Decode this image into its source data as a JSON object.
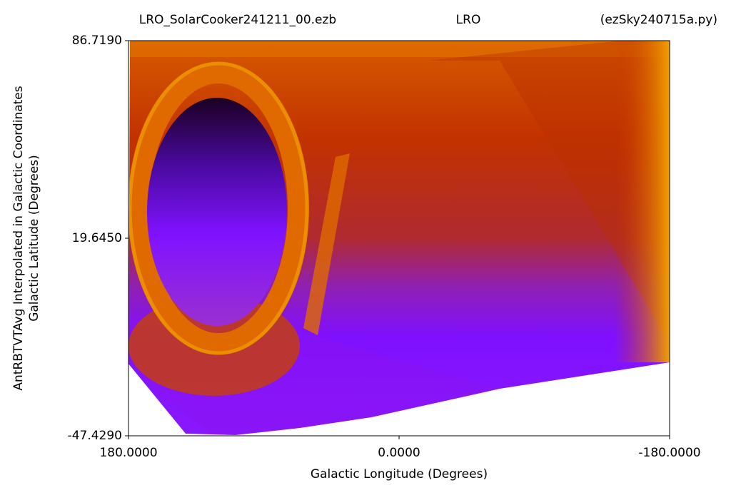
{
  "chart_data": {
    "type": "heatmap",
    "title": [
      "LRO_SolarCooker241211_00.ezb",
      "LRO",
      "(ezSky240715a.py)"
    ],
    "xlabel": "Galactic Longitude (Degrees)",
    "ylabel": [
      "AntRBTVTAvg Interpolated in Galactic Coordinates",
      "Galactic Latitude (Degrees)"
    ],
    "xlim": [
      180,
      -180
    ],
    "xticks": [
      {
        "value": 180,
        "label": "180.0000"
      },
      {
        "value": 0,
        "label": "0.0000"
      },
      {
        "value": -180,
        "label": "-180.0000"
      }
    ],
    "ylim": [
      -47.429,
      86.719
    ],
    "yticks": [
      {
        "value": -47.429,
        "label": "-47.4290"
      },
      {
        "value": 19.645,
        "label": "19.6450"
      },
      {
        "value": 86.719,
        "label": "86.7190"
      }
    ]
  }
}
